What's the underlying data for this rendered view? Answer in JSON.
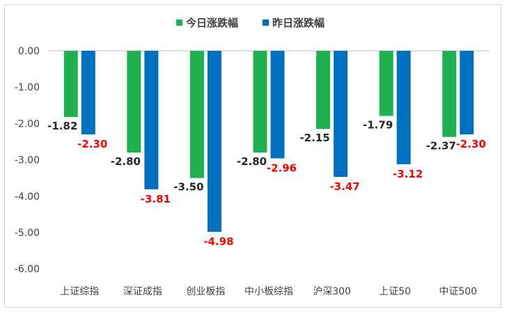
{
  "chart_data": {
    "type": "bar",
    "title": "",
    "xlabel": "",
    "ylabel": "",
    "ylim": [
      -6,
      0
    ],
    "ytick_step": 1,
    "grid": false,
    "legend_position": "top",
    "categories": [
      "上证综指",
      "深证成指",
      "创业板指",
      "中小板综指",
      "沪深300",
      "上证50",
      "中证500"
    ],
    "series": [
      {
        "name": "今日涨跌幅",
        "color": "#1fb050",
        "label_color": "#262626",
        "values": [
          -1.82,
          -2.8,
          -3.5,
          -2.8,
          -2.15,
          -1.79,
          -2.37
        ]
      },
      {
        "name": "昨日涨跌幅",
        "color": "#0070c0",
        "label_color": "#ff0000",
        "values": [
          -2.3,
          -3.81,
          -4.98,
          -2.96,
          -3.47,
          -3.12,
          -2.3
        ]
      }
    ],
    "ytick_labels": [
      "0.00",
      "-1.00",
      "-2.00",
      "-3.00",
      "-4.00",
      "-5.00",
      "-6.00"
    ],
    "value_labels": [
      [
        "-1.82",
        "-2.80",
        "-3.50",
        "-2.80",
        "-2.15",
        "-1.79",
        "-2.37"
      ],
      [
        "-2.30",
        "-3.81",
        "-4.98",
        "-2.96",
        "-3.47",
        "-3.12",
        "-2.30"
      ]
    ]
  }
}
